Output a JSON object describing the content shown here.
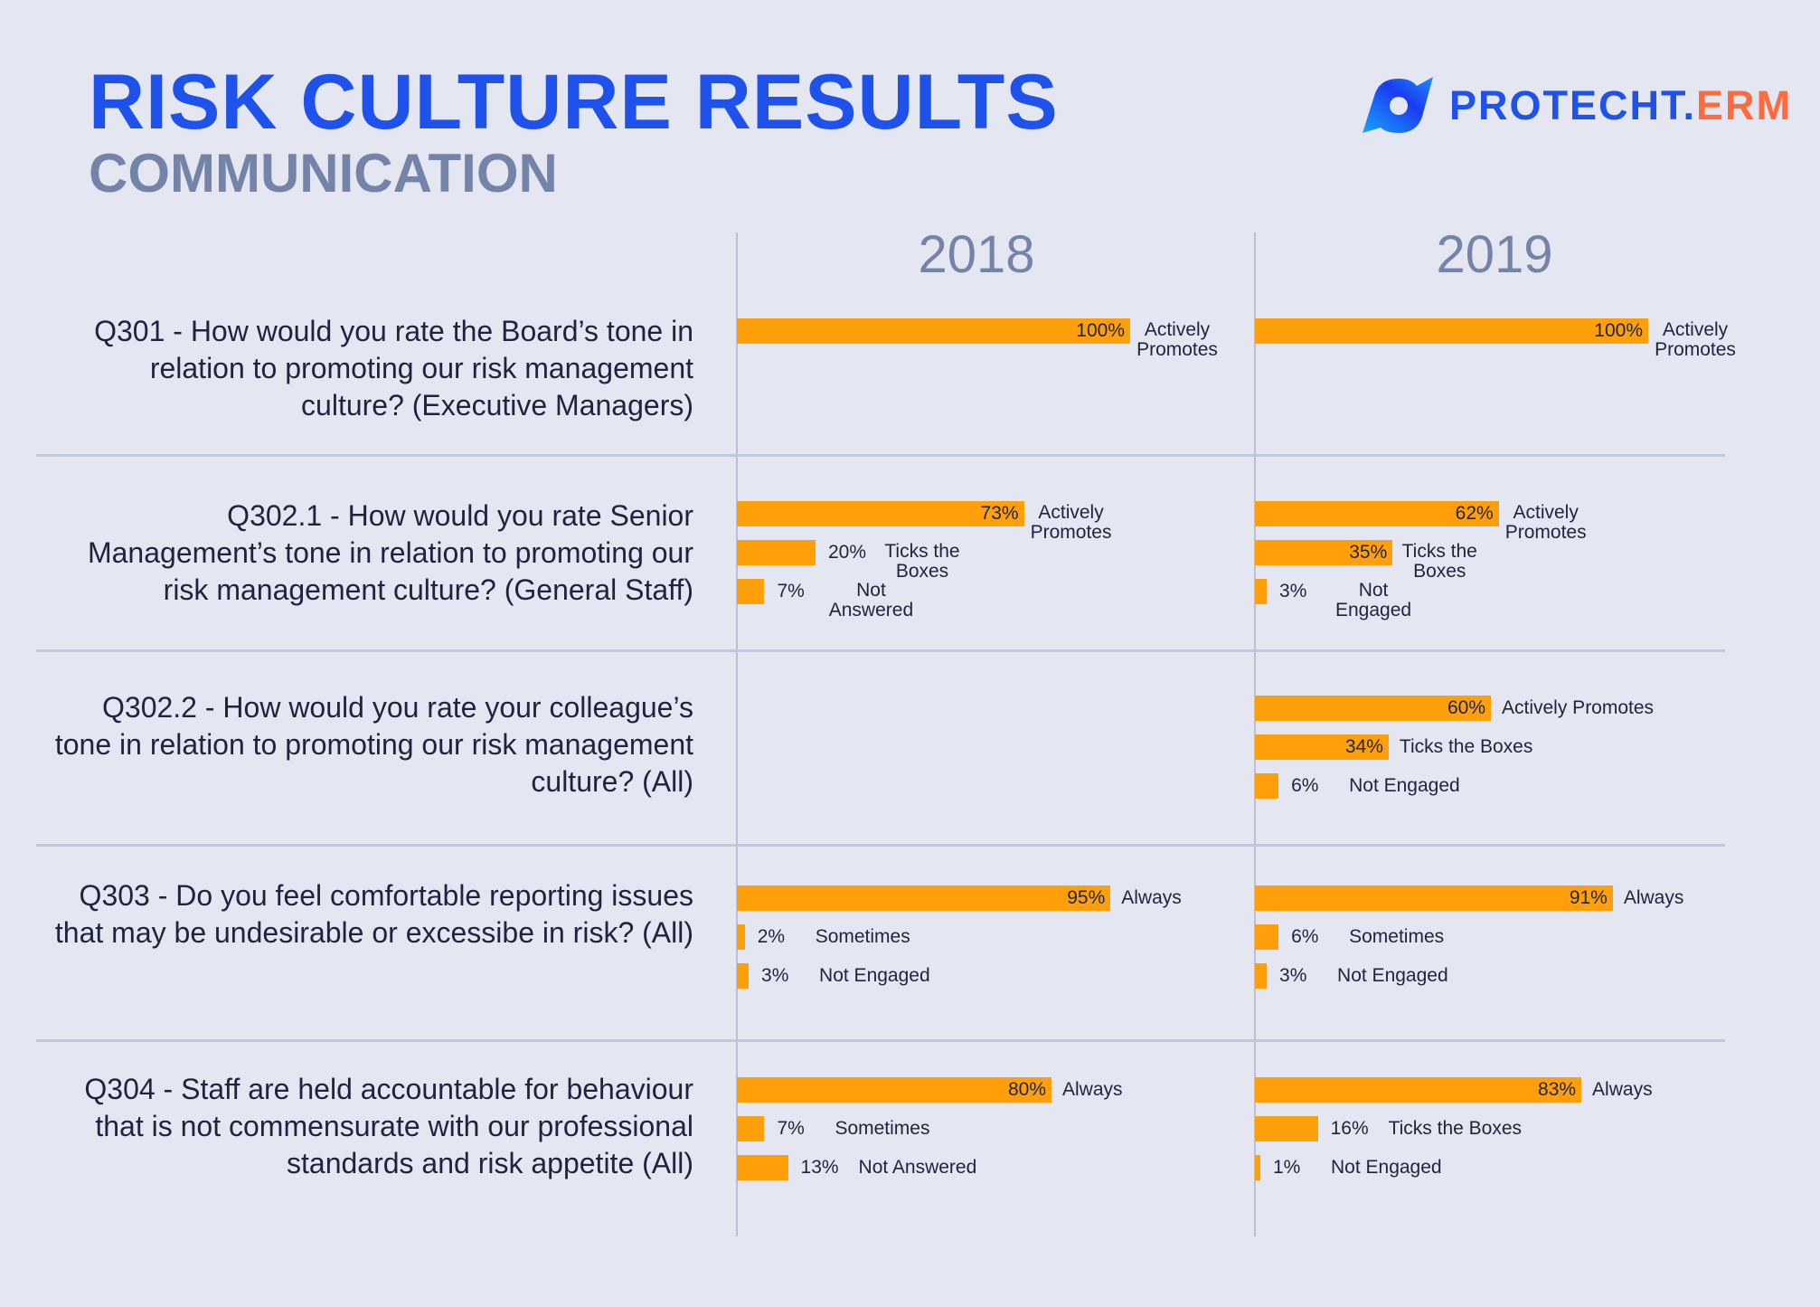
{
  "header": {
    "title": "RISK CULTURE RESULTS",
    "subtitle": "COMMUNICATION"
  },
  "logo": {
    "brand": "PROTECHT.",
    "suffix": "ERM"
  },
  "colors": {
    "bar": "#ff9f0a",
    "title": "#1f52ea",
    "subtitle": "#7384a8",
    "logo_suffix": "#ff6b3d",
    "background": "#e4e7f1"
  },
  "chart_data": {
    "type": "bar",
    "orientation": "horizontal",
    "unit": "%",
    "xlim": [
      0,
      100
    ],
    "columns": [
      "2018",
      "2019"
    ],
    "questions": [
      {
        "text": "Q301 - How would you rate the Board’s tone in relation to promoting our risk management culture? (Executive Managers)",
        "2018": [
          {
            "label": "Actively Promotes",
            "value": 100
          }
        ],
        "2019": [
          {
            "label": "Actively Promotes",
            "value": 100
          }
        ]
      },
      {
        "text": "Q302.1 - How would you rate Senior Management’s tone in relation to promoting our risk management culture? (General Staff)",
        "2018": [
          {
            "label": "Actively Promotes",
            "value": 73
          },
          {
            "label": "Ticks the Boxes",
            "value": 20
          },
          {
            "label": "Not Answered",
            "value": 7
          }
        ],
        "2019": [
          {
            "label": "Actively Promotes",
            "value": 62
          },
          {
            "label": "Ticks the Boxes",
            "value": 35
          },
          {
            "label": "Not Engaged",
            "value": 3
          }
        ]
      },
      {
        "text": "Q302.2 - How would you rate your colleague’s tone in relation to promoting our risk management culture? (All)",
        "2018": [],
        "2019": [
          {
            "label": "Actively Promotes",
            "value": 60
          },
          {
            "label": "Ticks the Boxes",
            "value": 34
          },
          {
            "label": "Not Engaged",
            "value": 6
          }
        ]
      },
      {
        "text": "Q303 - Do you feel comfortable reporting issues that may be undesirable or excessibe in risk? (All)",
        "2018": [
          {
            "label": "Always",
            "value": 95
          },
          {
            "label": "Sometimes",
            "value": 2
          },
          {
            "label": "Not Engaged",
            "value": 3
          }
        ],
        "2019": [
          {
            "label": "Always",
            "value": 91
          },
          {
            "label": "Sometimes",
            "value": 6
          },
          {
            "label": "Not Engaged",
            "value": 3
          }
        ]
      },
      {
        "text": "Q304 - Staff are held accountable for behaviour that is not commensurate with our professional standards and risk appetite (All)",
        "2018": [
          {
            "label": "Always",
            "value": 80
          },
          {
            "label": "Sometimes",
            "value": 7
          },
          {
            "label": "Not Answered",
            "value": 13
          }
        ],
        "2019": [
          {
            "label": "Always",
            "value": 83
          },
          {
            "label": "Ticks the Boxes",
            "value": 16
          },
          {
            "label": "Not Engaged",
            "value": 1
          }
        ]
      }
    ]
  }
}
